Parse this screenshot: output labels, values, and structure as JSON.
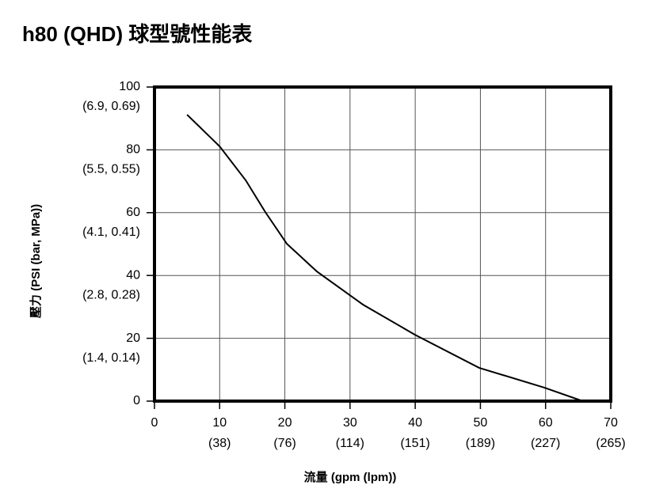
{
  "chart_data": {
    "type": "line",
    "title": "h80 (QHD) 球型號性能表",
    "x_label": "流量 (gpm (lpm))",
    "y_label": "壓力 (PSI (bar, MPa))",
    "series": [
      {
        "name": "h80",
        "color": "#000000",
        "x": [
          5,
          10,
          14,
          17,
          20.3,
          24.9,
          32,
          39.9,
          49.8,
          59.8,
          65.7
        ],
        "values": [
          91.2,
          81.1,
          70.3,
          60.2,
          50.1,
          41.3,
          30.7,
          21.2,
          10.6,
          4.3,
          0
        ]
      }
    ],
    "xlim": [
      0,
      70
    ],
    "xticks": [
      0,
      10,
      20,
      30,
      40,
      50,
      60,
      70
    ],
    "xtick_secondary_labels": [
      null,
      "(38)",
      "(76)",
      "(114)",
      "(151)",
      "(189)",
      "(227)",
      "(265)"
    ],
    "ylim": [
      0,
      100
    ],
    "yticks": [
      0,
      20,
      40,
      60,
      80,
      100
    ],
    "ytick_secondary_labels": [
      null,
      "(1.4, 0.14)",
      "(2.8, 0.28)",
      "(4.1, 0.41)",
      "(5.5, 0.55)",
      "(6.9, 0.69)"
    ],
    "grid": true
  }
}
